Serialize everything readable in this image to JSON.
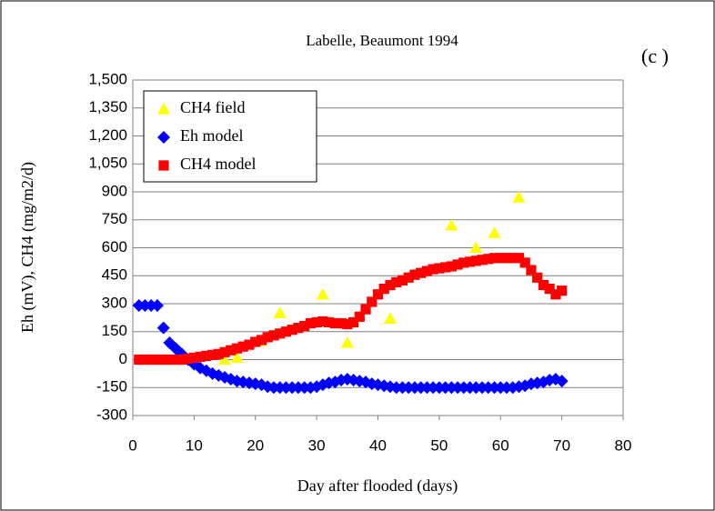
{
  "chart_data": {
    "type": "scatter",
    "title": "Labelle, Beaumont 1994",
    "annotation": "(c )",
    "x_label": "Day after flooded (days)",
    "y_label": "Eh (mV), CH4 (mg/m2/d)",
    "xlim": [
      0,
      80
    ],
    "xticks": [
      0,
      10,
      20,
      30,
      40,
      50,
      60,
      70,
      80
    ],
    "ylim": [
      -300,
      1500
    ],
    "yticks": [
      -300,
      -150,
      0,
      150,
      300,
      450,
      600,
      750,
      900,
      {
        "value": 1050,
        "label": "1,050"
      },
      {
        "value": 1200,
        "label": "1,200"
      },
      {
        "value": 1350,
        "label": "1,350"
      },
      {
        "value": 1500,
        "label": "1,500"
      }
    ],
    "grid": true,
    "legend": "upper left",
    "series": [
      {
        "name": "CH4 field",
        "color": "#ffff00",
        "marker": "triangle",
        "x": [
          15,
          17,
          21,
          24,
          31,
          35,
          42,
          52,
          56,
          59,
          63
        ],
        "values": [
          0,
          10,
          100,
          250,
          350,
          90,
          220,
          720,
          600,
          680,
          870
        ]
      },
      {
        "name": "Eh model",
        "color": "#0000ff",
        "marker": "diamond",
        "x": [
          1,
          2,
          3,
          4,
          5,
          6,
          7,
          8,
          9,
          10,
          11,
          12,
          13,
          14,
          15,
          16,
          17,
          18,
          19,
          20,
          21,
          22,
          23,
          24,
          25,
          26,
          27,
          28,
          29,
          30,
          31,
          32,
          33,
          34,
          35,
          36,
          37,
          38,
          39,
          40,
          41,
          42,
          43,
          44,
          45,
          46,
          47,
          48,
          49,
          50,
          51,
          52,
          53,
          54,
          55,
          56,
          57,
          58,
          59,
          60,
          61,
          62,
          63,
          64,
          65,
          66,
          67,
          68,
          69,
          70
        ],
        "values": [
          290,
          290,
          290,
          290,
          170,
          90,
          60,
          30,
          0,
          -25,
          -45,
          -60,
          -75,
          -85,
          -95,
          -105,
          -115,
          -120,
          -125,
          -130,
          -135,
          -145,
          -150,
          -150,
          -150,
          -150,
          -150,
          -150,
          -150,
          -145,
          -135,
          -125,
          -120,
          -110,
          -105,
          -110,
          -115,
          -120,
          -130,
          -135,
          -140,
          -145,
          -150,
          -150,
          -150,
          -150,
          -150,
          -150,
          -150,
          -150,
          -150,
          -150,
          -150,
          -150,
          -150,
          -150,
          -150,
          -150,
          -150,
          -150,
          -150,
          -150,
          -145,
          -140,
          -130,
          -125,
          -120,
          -110,
          -105,
          -115
        ]
      },
      {
        "name": "CH4 model",
        "color": "#ff0000",
        "marker": "square",
        "x": [
          1,
          2,
          3,
          4,
          5,
          6,
          7,
          8,
          9,
          10,
          11,
          12,
          13,
          14,
          15,
          16,
          17,
          18,
          19,
          20,
          21,
          22,
          23,
          24,
          25,
          26,
          27,
          28,
          29,
          30,
          31,
          32,
          33,
          34,
          35,
          36,
          37,
          38,
          39,
          40,
          41,
          42,
          43,
          44,
          45,
          46,
          47,
          48,
          49,
          50,
          51,
          52,
          53,
          54,
          55,
          56,
          57,
          58,
          59,
          60,
          61,
          62,
          63,
          64,
          65,
          66,
          67,
          68,
          69,
          70
        ],
        "values": [
          0,
          0,
          0,
          0,
          0,
          0,
          0,
          0,
          5,
          10,
          15,
          20,
          25,
          30,
          40,
          50,
          60,
          70,
          80,
          95,
          105,
          120,
          130,
          140,
          150,
          160,
          170,
          180,
          195,
          200,
          205,
          200,
          195,
          195,
          190,
          200,
          230,
          270,
          310,
          350,
          380,
          400,
          415,
          425,
          440,
          455,
          465,
          475,
          485,
          490,
          495,
          500,
          510,
          520,
          525,
          530,
          535,
          540,
          545,
          545,
          545,
          545,
          545,
          520,
          480,
          440,
          400,
          380,
          350,
          370
        ]
      }
    ]
  }
}
